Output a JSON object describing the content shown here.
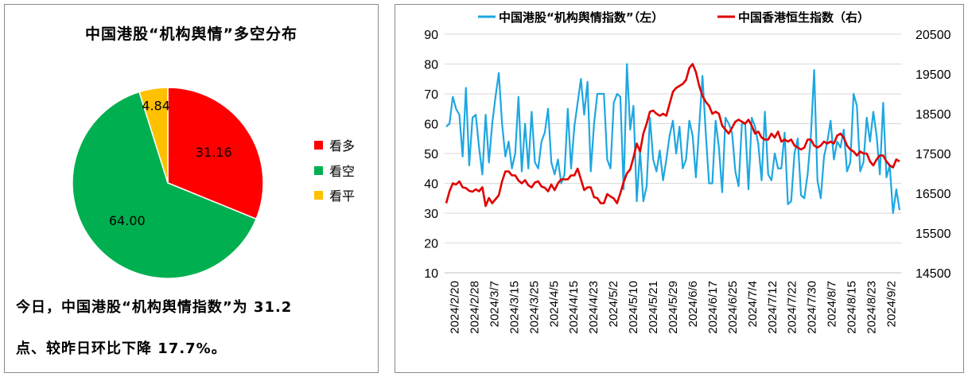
{
  "pie": {
    "title": "中国港股“机构舆情”多空分布",
    "colors": {
      "bull": "#ff0000",
      "bear": "#00b050",
      "neutral": "#ffc000"
    },
    "chart_data": {
      "type": "pie",
      "slices": [
        {
          "name": "看多",
          "value": 31.16,
          "label": "31.16",
          "color": "#ff0000"
        },
        {
          "name": "看空",
          "value": 64.0,
          "label": "64.00",
          "color": "#00b050"
        },
        {
          "name": "看平",
          "value": 4.84,
          "label": "4.84",
          "color": "#ffc000"
        }
      ]
    },
    "summary_line1": "今日，中国港股“机构舆情指数”为 31.2",
    "summary_line2": "点、较昨日环比下降 17.7%。"
  },
  "line": {
    "chart_data": {
      "type": "line",
      "left_axis": {
        "ticks": [
          10,
          20,
          30,
          40,
          50,
          60,
          70,
          80,
          90
        ],
        "ylim": [
          10,
          90
        ]
      },
      "right_axis": {
        "ticks": [
          14500,
          15500,
          16500,
          17500,
          18500,
          19500,
          20500
        ],
        "ylim": [
          14500,
          20500
        ]
      },
      "x_tick_labels": [
        "2024/2/20",
        "2024/2/28",
        "2024/3/7",
        "2024/3/15",
        "2024/3/25",
        "2024/4/5",
        "2024/4/15",
        "2024/4/23",
        "2024/5/2",
        "2024/5/10",
        "2024/5/21",
        "2024/5/29",
        "2024/6/6",
        "2024/6/17",
        "2024/6/25",
        "2024/7/4",
        "2024/7/12",
        "2024/7/22",
        "2024/7/30",
        "2024/8/7",
        "2024/8/15",
        "2024/8/23",
        "2024/9/2"
      ],
      "series": [
        {
          "name": "中国港股“机构舆情指数”（左）",
          "axis": "left",
          "color": "#1ea7e1",
          "values": [
            59,
            60,
            69,
            65,
            63,
            49,
            72,
            46,
            62,
            63,
            52,
            43,
            63,
            47,
            60,
            69,
            77,
            60,
            49,
            54,
            45,
            50,
            69,
            44,
            60,
            45,
            64,
            47,
            45,
            54,
            57,
            65,
            47,
            43,
            48,
            40,
            43,
            65,
            45,
            59,
            67,
            75,
            63,
            74,
            44,
            60,
            70,
            70,
            70,
            48,
            45,
            67,
            70,
            69,
            38,
            80,
            58,
            66,
            34,
            51,
            34,
            39,
            62,
            48,
            44,
            51,
            41,
            48,
            56,
            61,
            50,
            59,
            45,
            48,
            61,
            56,
            42,
            59,
            76,
            57,
            40,
            40,
            61,
            52,
            37,
            62,
            60,
            57,
            44,
            39,
            60,
            60,
            38,
            62,
            59,
            53,
            41,
            64,
            43,
            41,
            50,
            45,
            45,
            57,
            33,
            34,
            50,
            55,
            36,
            35,
            43,
            56,
            78,
            41,
            35,
            49,
            54,
            61,
            48,
            54,
            52,
            58,
            44,
            47,
            70,
            66,
            44,
            47,
            62,
            54,
            64,
            56,
            43,
            67,
            42,
            46,
            30,
            38,
            31
          ]
        },
        {
          "name": "中国香港恒生指数（右）",
          "axis": "right",
          "color": "#e00000",
          "values": [
            16250,
            16550,
            16750,
            16720,
            16800,
            16650,
            16630,
            16560,
            16540,
            16600,
            16550,
            16650,
            16180,
            16380,
            16250,
            16350,
            16450,
            16800,
            17050,
            17050,
            16950,
            16950,
            16820,
            16750,
            16830,
            16700,
            16650,
            16770,
            16800,
            16670,
            16640,
            16550,
            16720,
            16580,
            16750,
            16850,
            16850,
            16850,
            16950,
            16950,
            17120,
            16850,
            16580,
            16650,
            16650,
            16400,
            16380,
            16250,
            16250,
            16480,
            16420,
            16370,
            16250,
            16500,
            16780,
            17000,
            17100,
            17400,
            17750,
            17550,
            18000,
            18250,
            18550,
            18580,
            18500,
            18450,
            18500,
            18450,
            18750,
            19050,
            19150,
            19200,
            19250,
            19350,
            19650,
            19750,
            19550,
            19200,
            18950,
            18800,
            18700,
            18500,
            18550,
            18500,
            18200,
            18100,
            18000,
            18150,
            18300,
            18350,
            18300,
            18250,
            18350,
            18200,
            18000,
            18050,
            17900,
            17850,
            17850,
            18000,
            17900,
            18050,
            17800,
            17850,
            17800,
            17850,
            17700,
            17650,
            17600,
            17650,
            17850,
            17850,
            17700,
            17650,
            17700,
            17800,
            17750,
            17800,
            17750,
            17950,
            18000,
            17900,
            17700,
            17600,
            17550,
            17450,
            17550,
            17500,
            17500,
            17300,
            17200,
            17350,
            17450,
            17450,
            17300,
            17200,
            17150,
            17350,
            17300
          ]
        }
      ]
    },
    "legend_left": "中国港股“机构舆情指数”（左）",
    "legend_right": "中国香港恒生指数（右）"
  }
}
